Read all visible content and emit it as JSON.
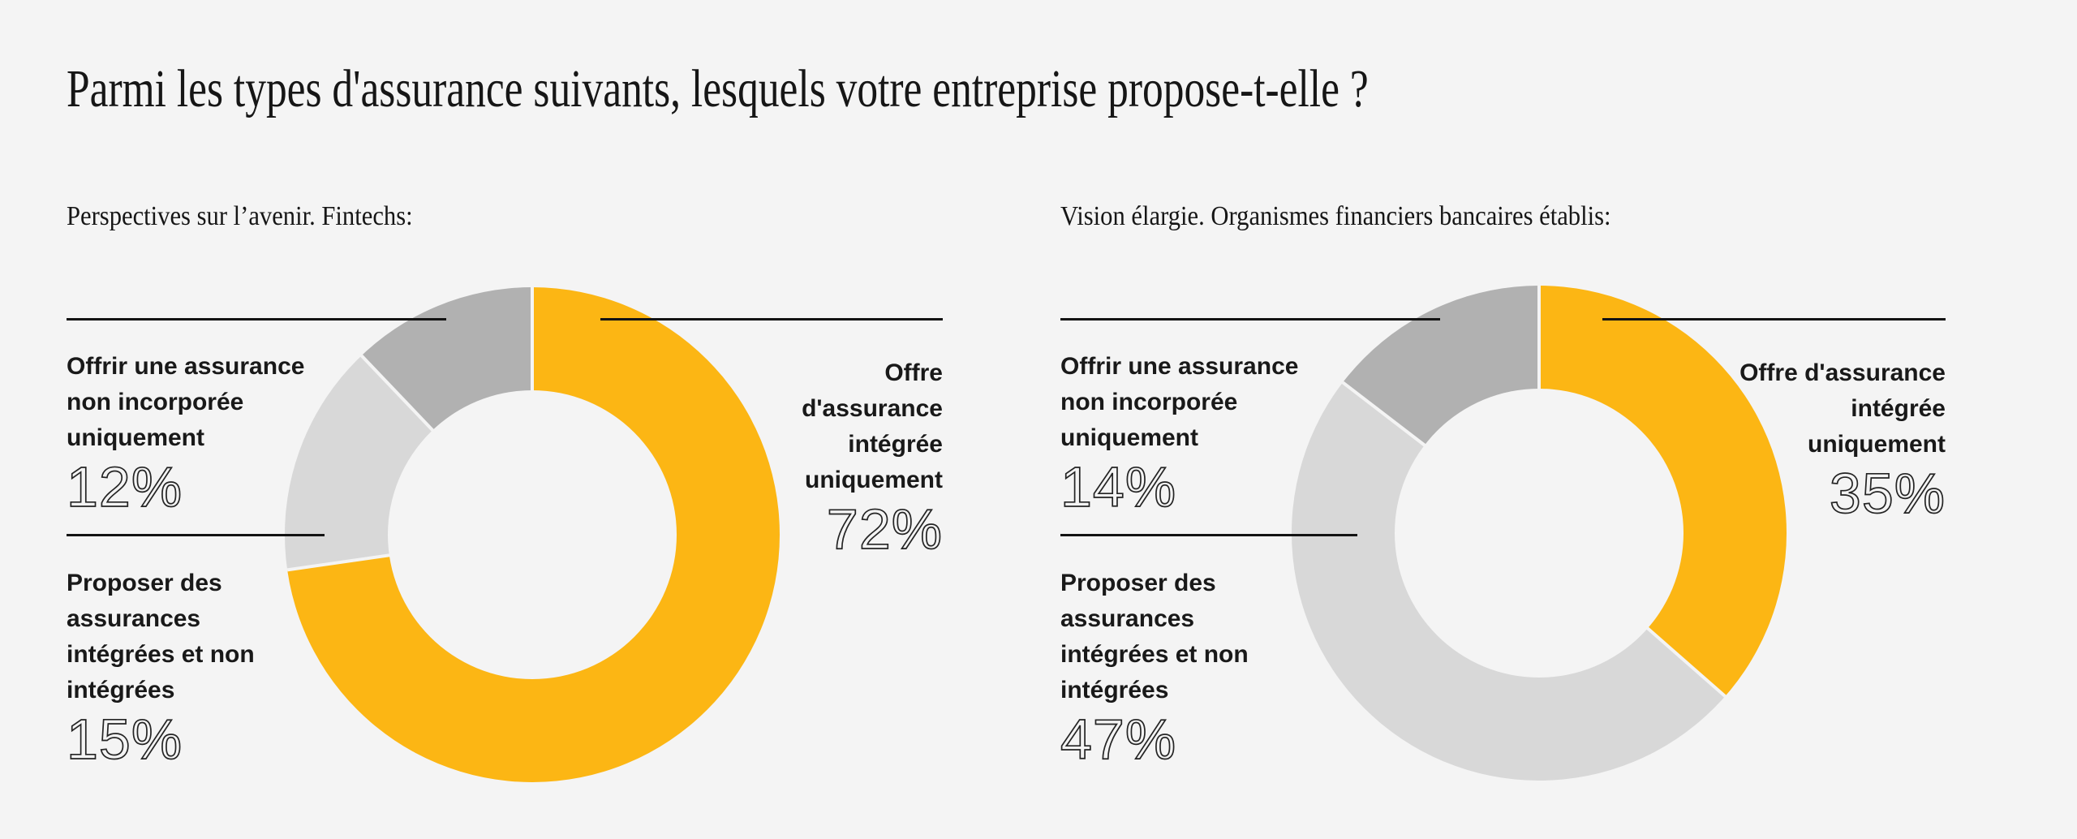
{
  "page": {
    "title": "Parmi les types d'assurance suivants, lesquels votre entreprise propose-t-elle ?",
    "background_color": "#f4f4f4",
    "line_color": "#131313"
  },
  "chart_data": [
    {
      "type": "pie",
      "subtype": "donut",
      "title": "Perspectives sur l’avenir. Fintechs:",
      "legend_position": "callout-labels",
      "slices": [
        {
          "label": "Offre d'assurance intégrée uniquement",
          "value": 72,
          "color": "#FCB614"
        },
        {
          "label": "Proposer des assurances intégrées et non intégrées",
          "value": 15,
          "color": "#D8D8D8"
        },
        {
          "label": "Offrir une assurance non incorporée uniquement",
          "value": 12,
          "color": "#B1B1B1"
        }
      ]
    },
    {
      "type": "pie",
      "subtype": "donut",
      "title": "Vision élargie. Organismes financiers bancaires établis:",
      "legend_position": "callout-labels",
      "slices": [
        {
          "label": "Offre d'assurance intégrée uniquement",
          "value": 35,
          "color": "#FCB614"
        },
        {
          "label": "Proposer des assurances intégrées et non intégrées",
          "value": 47,
          "color": "#D8D8D8"
        },
        {
          "label": "Offrir une assurance non incorporée uniquement",
          "value": 14,
          "color": "#B1B1B1"
        }
      ]
    }
  ],
  "panels": [
    {
      "subtitle": "Perspectives sur l’avenir. Fintechs:",
      "callouts": {
        "left_top": {
          "label": "Offrir une assurance\nnon incorporée\nuniquement",
          "pct": "12%"
        },
        "left_bottom": {
          "label": "Proposer des\nassurances\nintégrées et non\nintégrées",
          "pct": "15%"
        },
        "right": {
          "label": "Offre\nd'assurance\nintégrée\nuniquement",
          "pct": "72%"
        }
      }
    },
    {
      "subtitle": "Vision élargie. Organismes financiers bancaires établis:",
      "callouts": {
        "left_top": {
          "label": "Offrir une assurance\nnon incorporée\nuniquement",
          "pct": "14%"
        },
        "left_bottom": {
          "label": "Proposer des\nassurances\nintégrées et non\nintégrées",
          "pct": "47%"
        },
        "right": {
          "label": "Offre d'assurance\nintégrée\nuniquement",
          "pct": "35%"
        }
      }
    }
  ]
}
